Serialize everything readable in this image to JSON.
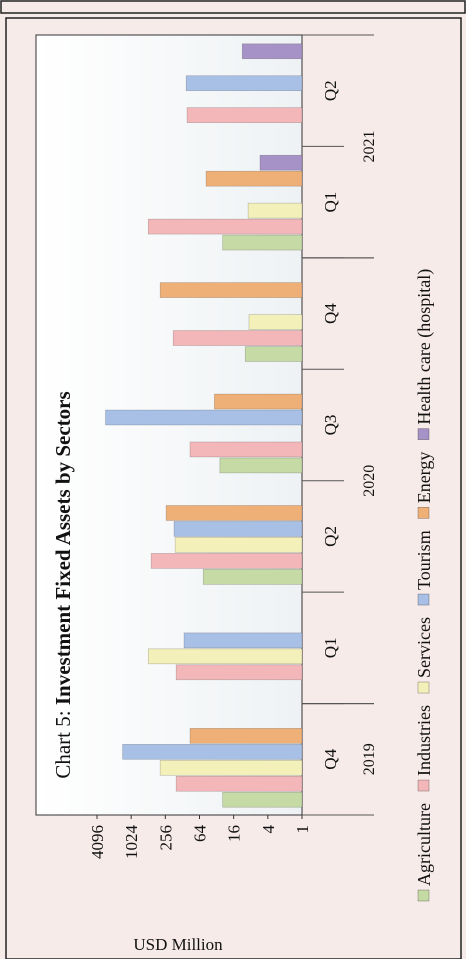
{
  "chart_data": {
    "type": "bar",
    "title_label": "Chart 5:",
    "title": "Investment Fixed Assets by Sectors",
    "y_label": "USD Million",
    "categories": [
      "Q4",
      "Q1",
      "Q2",
      "Q3",
      "Q4",
      "Q1",
      "Q2"
    ],
    "category_groups": [
      {
        "label": "2019",
        "count": 1
      },
      {
        "label": "2020",
        "count": 4
      },
      {
        "label": "2021",
        "count": 2
      }
    ],
    "series": [
      {
        "name": "Agriculture",
        "color": "#c6daa6",
        "values": [
          25,
          null,
          55,
          28,
          10,
          25,
          null
        ]
      },
      {
        "name": "Industries",
        "color": "#f4b7b9",
        "values": [
          165,
          165,
          455,
          94,
          186,
          512,
          106
        ]
      },
      {
        "name": "Services",
        "color": "#f4f0b9",
        "values": [
          316,
          512,
          172,
          null,
          8.6,
          8.9,
          null
        ]
      },
      {
        "name": "Tourism",
        "color": "#a8c0e6",
        "values": [
          1450,
          120,
          180,
          2900,
          null,
          null,
          110
        ]
      },
      {
        "name": "Energy",
        "color": "#efb078",
        "values": [
          94,
          null,
          248,
          35,
          316,
          49,
          null
        ]
      },
      {
        "name": "Health care (hospital)",
        "color": "#a692c6",
        "values": [
          null,
          null,
          null,
          null,
          null,
          5.5,
          11.3
        ]
      }
    ],
    "ylim": [
      1,
      4096
    ],
    "yticks": [
      1,
      4,
      16,
      64,
      256,
      1024,
      4096
    ],
    "log_scale": true,
    "log_base": 2,
    "grid": false,
    "legend_position": "bottom"
  }
}
